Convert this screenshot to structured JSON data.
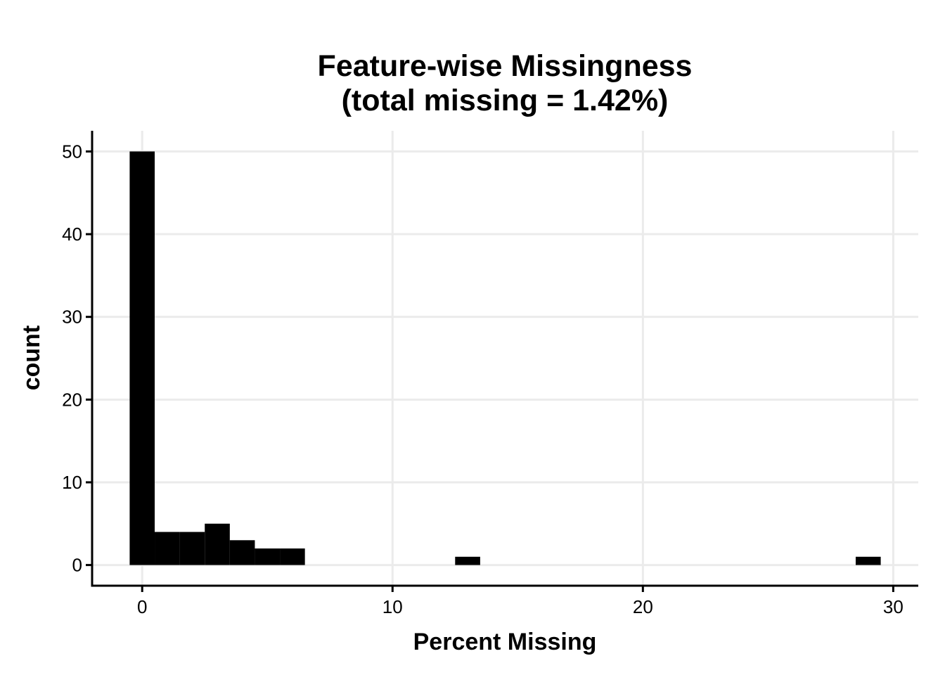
{
  "chart_data": {
    "type": "bar",
    "title": [
      "Feature-wise Missingness",
      "(total missing = 1.42%)"
    ],
    "xlabel": "Percent Missing",
    "ylabel": "count",
    "xlim": [
      -2,
      31
    ],
    "ylim": [
      -2.5,
      52.5
    ],
    "x_ticks": [
      0,
      10,
      20,
      30
    ],
    "y_ticks": [
      0,
      10,
      20,
      30,
      40,
      50
    ],
    "grid": true,
    "bin_width": 1,
    "bins": [
      {
        "x0": -0.5,
        "x1": 0.5,
        "count": 50
      },
      {
        "x0": 0.5,
        "x1": 1.5,
        "count": 4
      },
      {
        "x0": 1.5,
        "x1": 2.5,
        "count": 4
      },
      {
        "x0": 2.5,
        "x1": 3.5,
        "count": 5
      },
      {
        "x0": 3.5,
        "x1": 4.5,
        "count": 3
      },
      {
        "x0": 4.5,
        "x1": 5.5,
        "count": 2
      },
      {
        "x0": 5.5,
        "x1": 6.5,
        "count": 2
      },
      {
        "x0": 12.5,
        "x1": 13.5,
        "count": 1
      },
      {
        "x0": 28.5,
        "x1": 29.5,
        "count": 1
      }
    ],
    "bar_color": "#000000",
    "grid_color": "#ebebeb"
  }
}
